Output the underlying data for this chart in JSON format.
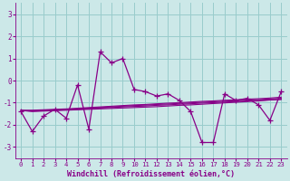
{
  "x": [
    0,
    1,
    2,
    3,
    4,
    5,
    6,
    7,
    8,
    9,
    10,
    11,
    12,
    13,
    14,
    15,
    16,
    17,
    18,
    19,
    20,
    21,
    22,
    23
  ],
  "y_main": [
    -1.4,
    -2.3,
    -1.6,
    -1.3,
    -1.7,
    -0.2,
    -2.2,
    1.3,
    0.8,
    1.0,
    -0.4,
    -0.5,
    -0.7,
    -0.6,
    -0.9,
    -1.4,
    -2.8,
    -2.8,
    -0.6,
    -0.9,
    -0.8,
    -1.1,
    -1.8,
    -0.5
  ],
  "y_line1": [
    -1.35,
    -1.4,
    -1.38,
    -1.36,
    -1.34,
    -1.32,
    -1.3,
    -1.28,
    -1.26,
    -1.24,
    -1.22,
    -1.2,
    -1.18,
    -1.15,
    -1.12,
    -1.1,
    -1.07,
    -1.04,
    -1.01,
    -0.98,
    -0.95,
    -0.92,
    -0.88,
    -0.85
  ],
  "y_line2": [
    -1.35,
    -1.38,
    -1.36,
    -1.34,
    -1.32,
    -1.3,
    -1.27,
    -1.24,
    -1.22,
    -1.19,
    -1.17,
    -1.15,
    -1.12,
    -1.1,
    -1.07,
    -1.05,
    -1.02,
    -1.0,
    -0.97,
    -0.95,
    -0.92,
    -0.9,
    -0.87,
    -0.85
  ],
  "y_line3": [
    -1.35,
    -1.36,
    -1.34,
    -1.32,
    -1.3,
    -1.28,
    -1.25,
    -1.22,
    -1.19,
    -1.16,
    -1.13,
    -1.11,
    -1.08,
    -1.06,
    -1.03,
    -1.01,
    -0.98,
    -0.96,
    -0.93,
    -0.91,
    -0.88,
    -0.86,
    -0.83,
    -0.8
  ],
  "y_line4": [
    -1.35,
    -1.34,
    -1.32,
    -1.3,
    -1.28,
    -1.25,
    -1.22,
    -1.19,
    -1.16,
    -1.13,
    -1.1,
    -1.08,
    -1.05,
    -1.02,
    -1.0,
    -0.97,
    -0.94,
    -0.92,
    -0.89,
    -0.87,
    -0.84,
    -0.82,
    -0.79,
    -0.75
  ],
  "bg_color": "#cce8e8",
  "line_color": "#880088",
  "grid_color": "#99cccc",
  "xlabel": "Windchill (Refroidissement éolien,°C)",
  "ylim": [
    -3.5,
    3.5
  ],
  "xlim": [
    -0.5,
    23.5
  ],
  "yticks": [
    -3,
    -2,
    -1,
    0,
    1,
    2,
    3
  ],
  "xticks": [
    0,
    1,
    2,
    3,
    4,
    5,
    6,
    7,
    8,
    9,
    10,
    11,
    12,
    13,
    14,
    15,
    16,
    17,
    18,
    19,
    20,
    21,
    22,
    23
  ]
}
